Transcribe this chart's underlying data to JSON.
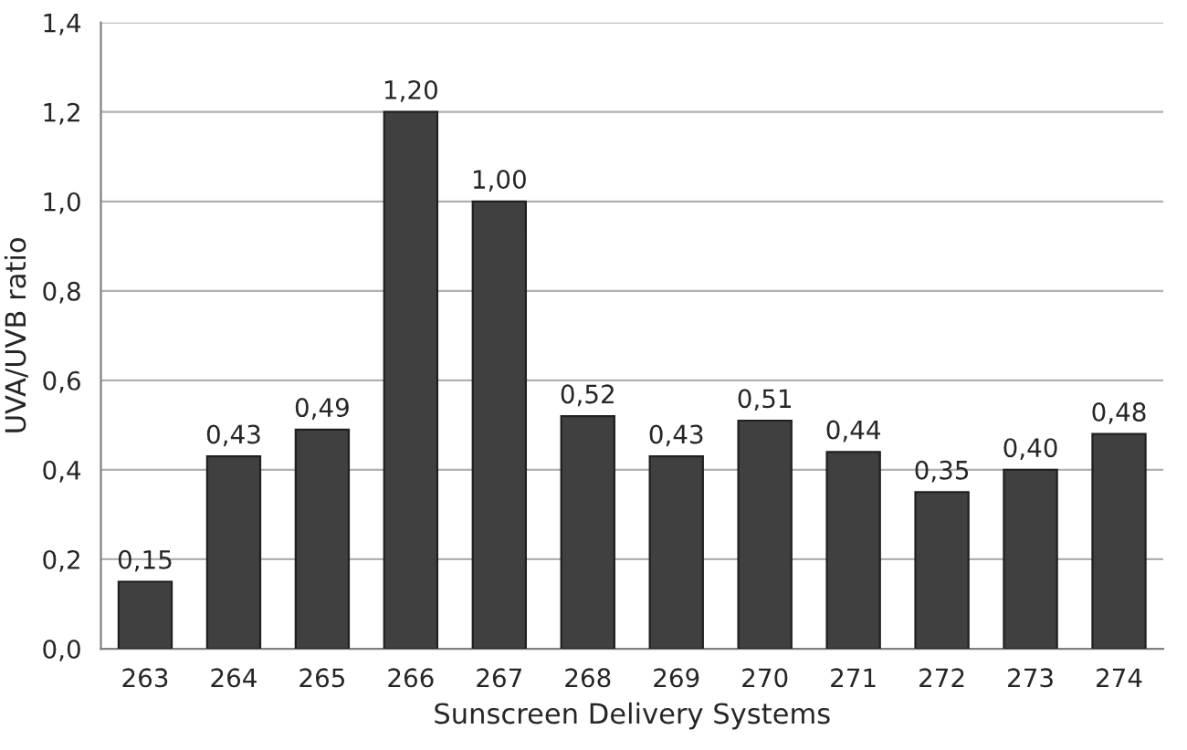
{
  "chart_data": {
    "type": "bar",
    "xlabel": "Sunscreen Delivery Systems",
    "ylabel": "UVA/UVB ratio",
    "categories": [
      "263",
      "264",
      "265",
      "266",
      "267",
      "268",
      "269",
      "270",
      "271",
      "272",
      "273",
      "274"
    ],
    "values": [
      0.15,
      0.43,
      0.49,
      1.2,
      1.0,
      0.52,
      0.43,
      0.51,
      0.44,
      0.35,
      0.4,
      0.48
    ],
    "value_labels": [
      "0,15",
      "0,43",
      "0,49",
      "1,20",
      "1,00",
      "0,52",
      "0,43",
      "0,51",
      "0,44",
      "0,35",
      "0,40",
      "0,48"
    ],
    "color": "#404040",
    "ylim": [
      0,
      1.4
    ],
    "yticks": [
      {
        "value": 0,
        "label": "0,0"
      },
      {
        "value": 0.2,
        "label": "0,2"
      },
      {
        "value": 0.4,
        "label": "0,4"
      },
      {
        "value": 0.6,
        "label": "0,6"
      },
      {
        "value": 0.8,
        "label": "0,8"
      },
      {
        "value": 1.0,
        "label": "1,0"
      },
      {
        "value": 1.2,
        "label": "1,2"
      },
      {
        "value": 1.4,
        "label": "1,4"
      }
    ],
    "grid": "y",
    "legend": false
  }
}
